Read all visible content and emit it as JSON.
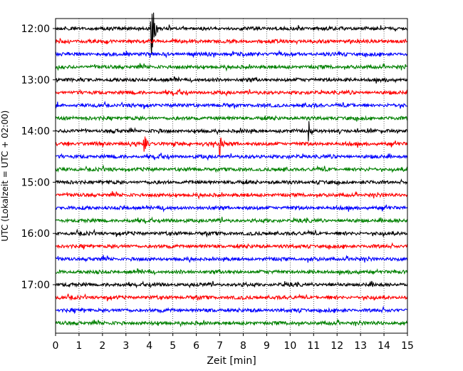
{
  "chart_data": {
    "type": "line",
    "title": "",
    "xlabel": "Zeit  [min]",
    "ylabel": "UTC (Lokalzeit = UTC + 02:00)",
    "xlim": [
      0,
      15
    ],
    "xticks": [
      0,
      1,
      2,
      3,
      4,
      5,
      6,
      7,
      8,
      9,
      10,
      11,
      12,
      13,
      14,
      15
    ],
    "x_grid": true,
    "y_hour_labels": [
      "12:00",
      "13:00",
      "14:00",
      "15:00",
      "16:00",
      "17:00"
    ],
    "color_cycle": [
      "#000000",
      "#ff0000",
      "#0000ff",
      "#008000"
    ],
    "traces": [
      {
        "start": "12:00",
        "color": "#000000",
        "events": [
          {
            "t": 4.1,
            "amp": 1.4
          }
        ]
      },
      {
        "start": "12:15",
        "color": "#ff0000",
        "events": []
      },
      {
        "start": "12:30",
        "color": "#0000ff",
        "events": []
      },
      {
        "start": "12:45",
        "color": "#008000",
        "events": []
      },
      {
        "start": "13:00",
        "color": "#000000",
        "events": []
      },
      {
        "start": "13:15",
        "color": "#ff0000",
        "events": []
      },
      {
        "start": "13:30",
        "color": "#0000ff",
        "events": []
      },
      {
        "start": "13:45",
        "color": "#008000",
        "events": []
      },
      {
        "start": "14:00",
        "color": "#000000",
        "events": [
          {
            "t": 10.8,
            "amp": 0.4
          }
        ]
      },
      {
        "start": "14:15",
        "color": "#ff0000",
        "events": [
          {
            "t": 3.8,
            "amp": 0.4
          },
          {
            "t": 7.0,
            "amp": 0.4
          }
        ]
      },
      {
        "start": "14:30",
        "color": "#0000ff",
        "events": []
      },
      {
        "start": "14:45",
        "color": "#008000",
        "events": []
      },
      {
        "start": "15:00",
        "color": "#000000",
        "events": []
      },
      {
        "start": "15:15",
        "color": "#ff0000",
        "events": []
      },
      {
        "start": "15:30",
        "color": "#0000ff",
        "events": []
      },
      {
        "start": "15:45",
        "color": "#008000",
        "events": []
      },
      {
        "start": "16:00",
        "color": "#000000",
        "events": []
      },
      {
        "start": "16:15",
        "color": "#ff0000",
        "events": []
      },
      {
        "start": "16:30",
        "color": "#0000ff",
        "events": []
      },
      {
        "start": "16:45",
        "color": "#008000",
        "events": []
      },
      {
        "start": "17:00",
        "color": "#000000",
        "events": []
      },
      {
        "start": "17:15",
        "color": "#ff0000",
        "events": []
      },
      {
        "start": "17:30",
        "color": "#0000ff",
        "events": []
      },
      {
        "start": "17:45",
        "color": "#008000",
        "events": []
      }
    ]
  }
}
